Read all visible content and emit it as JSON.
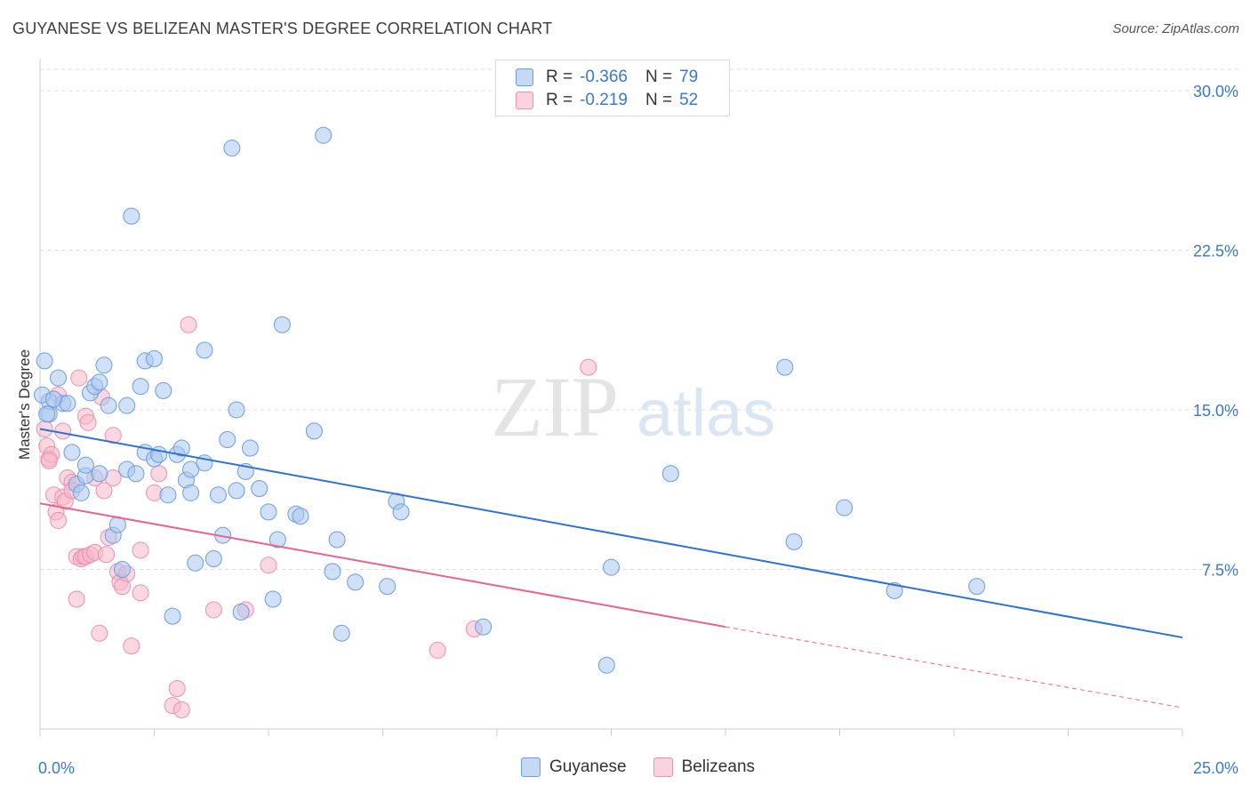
{
  "header": {
    "title": "GUYANESE VS BELIZEAN MASTER'S DEGREE CORRELATION CHART",
    "source": "Source: ZipAtlas.com"
  },
  "watermark": {
    "zip": "ZIP",
    "atlas": "atlas"
  },
  "legend_top": [
    {
      "r_label": "R =",
      "r_value": "-0.366",
      "n_label": "N =",
      "n_value": "79",
      "color": "#a9c6ef"
    },
    {
      "r_label": "R =",
      "r_value": "-0.219",
      "n_label": "N =",
      "n_value": "52",
      "color": "#f6b8cb"
    }
  ],
  "legend_bottom": [
    {
      "label": "Guyanese",
      "color": "#a9c6ef"
    },
    {
      "label": "Belizeans",
      "color": "#f6b8cb"
    }
  ],
  "colors": {
    "blue_fill": "#a9c6ef",
    "blue_stroke": "#6b9de0",
    "blue_line": "#2f72d0",
    "pink_fill": "#f6b8cb",
    "pink_stroke": "#ec8fb0",
    "pink_line": "#e8638f",
    "tick_text": "#3a78c8",
    "grid": "#dddddd"
  },
  "chart_data": {
    "type": "scatter",
    "title": "GUYANESE VS BELIZEAN MASTER'S DEGREE CORRELATION CHART",
    "xlabel": "",
    "ylabel": "Master's Degree",
    "xlim": [
      0,
      25
    ],
    "ylim": [
      0,
      31
    ],
    "x_tick_labels": [
      "0.0%",
      "25.0%"
    ],
    "y_ticks": [
      7.5,
      15.0,
      22.5,
      30.0
    ],
    "y_tick_labels": [
      "7.5%",
      "15.0%",
      "22.5%",
      "30.0%"
    ],
    "grid": true,
    "series": [
      {
        "name": "Guyanese",
        "r": -0.366,
        "n": 79,
        "trend": {
          "x0": 0,
          "y0": 14.1,
          "x1": 25,
          "y1": 4.3
        },
        "points": [
          [
            0.1,
            17.3
          ],
          [
            0.2,
            15.4
          ],
          [
            0.2,
            14.8
          ],
          [
            0.4,
            16.5
          ],
          [
            0.5,
            15.3
          ],
          [
            0.6,
            15.3
          ],
          [
            0.7,
            13.0
          ],
          [
            0.8,
            11.5
          ],
          [
            0.9,
            11.1
          ],
          [
            1.0,
            11.9
          ],
          [
            1.0,
            12.4
          ],
          [
            1.1,
            15.8
          ],
          [
            1.2,
            16.1
          ],
          [
            1.3,
            12.0
          ],
          [
            1.3,
            16.3
          ],
          [
            1.4,
            17.1
          ],
          [
            1.5,
            15.2
          ],
          [
            1.6,
            9.1
          ],
          [
            1.7,
            9.6
          ],
          [
            1.8,
            7.5
          ],
          [
            1.9,
            12.2
          ],
          [
            1.9,
            15.2
          ],
          [
            2.0,
            24.1
          ],
          [
            2.1,
            12.0
          ],
          [
            2.2,
            16.1
          ],
          [
            2.3,
            17.3
          ],
          [
            2.3,
            13.0
          ],
          [
            2.5,
            17.4
          ],
          [
            2.5,
            12.7
          ],
          [
            2.6,
            12.9
          ],
          [
            2.7,
            15.9
          ],
          [
            2.8,
            11.0
          ],
          [
            2.9,
            5.3
          ],
          [
            3.0,
            12.9
          ],
          [
            3.1,
            13.2
          ],
          [
            3.2,
            11.7
          ],
          [
            3.3,
            11.1
          ],
          [
            3.3,
            12.2
          ],
          [
            3.4,
            7.8
          ],
          [
            3.6,
            12.5
          ],
          [
            3.6,
            17.8
          ],
          [
            3.8,
            8.0
          ],
          [
            3.9,
            11.0
          ],
          [
            4.0,
            9.1
          ],
          [
            4.1,
            13.6
          ],
          [
            4.2,
            27.3
          ],
          [
            4.3,
            11.2
          ],
          [
            4.3,
            15.0
          ],
          [
            4.4,
            5.5
          ],
          [
            4.5,
            12.1
          ],
          [
            4.6,
            13.2
          ],
          [
            4.8,
            11.3
          ],
          [
            5.0,
            10.2
          ],
          [
            5.1,
            6.1
          ],
          [
            5.2,
            8.9
          ],
          [
            5.3,
            19.0
          ],
          [
            5.6,
            10.1
          ],
          [
            5.7,
            10.0
          ],
          [
            6.0,
            14.0
          ],
          [
            6.2,
            27.9
          ],
          [
            6.4,
            7.4
          ],
          [
            6.5,
            8.9
          ],
          [
            6.6,
            4.5
          ],
          [
            6.9,
            6.9
          ],
          [
            7.6,
            6.7
          ],
          [
            7.8,
            10.7
          ],
          [
            7.9,
            10.2
          ],
          [
            9.7,
            4.8
          ],
          [
            12.4,
            3.0
          ],
          [
            12.5,
            7.6
          ],
          [
            13.8,
            12.0
          ],
          [
            16.3,
            17.0
          ],
          [
            16.5,
            8.8
          ],
          [
            17.6,
            10.4
          ],
          [
            18.7,
            6.5
          ],
          [
            20.5,
            6.7
          ],
          [
            0.05,
            15.7
          ],
          [
            0.15,
            14.8
          ],
          [
            0.3,
            15.5
          ]
        ]
      },
      {
        "name": "Belizeans",
        "r": -0.219,
        "n": 52,
        "trend": {
          "x0": 0,
          "y0": 10.6,
          "x1": 15,
          "y1": 4.8,
          "dash_x1": 25,
          "dash_y1": 1.0
        },
        "points": [
          [
            0.1,
            14.1
          ],
          [
            0.15,
            13.3
          ],
          [
            0.2,
            12.7
          ],
          [
            0.25,
            12.9
          ],
          [
            0.3,
            11.0
          ],
          [
            0.35,
            10.2
          ],
          [
            0.4,
            15.7
          ],
          [
            0.4,
            9.8
          ],
          [
            0.5,
            14.0
          ],
          [
            0.5,
            10.9
          ],
          [
            0.55,
            10.7
          ],
          [
            0.6,
            11.8
          ],
          [
            0.7,
            11.6
          ],
          [
            0.7,
            11.2
          ],
          [
            0.8,
            8.1
          ],
          [
            0.8,
            6.1
          ],
          [
            0.85,
            16.5
          ],
          [
            0.9,
            8.0
          ],
          [
            0.95,
            8.1
          ],
          [
            1.0,
            14.7
          ],
          [
            1.0,
            8.1
          ],
          [
            1.05,
            14.4
          ],
          [
            1.1,
            8.2
          ],
          [
            1.2,
            11.8
          ],
          [
            1.2,
            8.3
          ],
          [
            1.3,
            4.5
          ],
          [
            1.35,
            15.6
          ],
          [
            1.4,
            11.2
          ],
          [
            1.45,
            8.2
          ],
          [
            1.5,
            9.0
          ],
          [
            1.6,
            11.8
          ],
          [
            1.6,
            13.8
          ],
          [
            1.7,
            7.4
          ],
          [
            1.75,
            6.9
          ],
          [
            1.8,
            6.7
          ],
          [
            1.9,
            7.3
          ],
          [
            2.0,
            3.9
          ],
          [
            2.2,
            6.4
          ],
          [
            2.2,
            8.4
          ],
          [
            2.5,
            11.1
          ],
          [
            2.6,
            12.0
          ],
          [
            2.9,
            1.1
          ],
          [
            3.0,
            1.9
          ],
          [
            3.1,
            0.9
          ],
          [
            3.25,
            19.0
          ],
          [
            3.8,
            5.6
          ],
          [
            4.5,
            5.6
          ],
          [
            5.0,
            7.7
          ],
          [
            8.7,
            3.7
          ],
          [
            9.5,
            4.7
          ],
          [
            12.0,
            17.0
          ],
          [
            0.2,
            12.6
          ]
        ]
      }
    ]
  }
}
